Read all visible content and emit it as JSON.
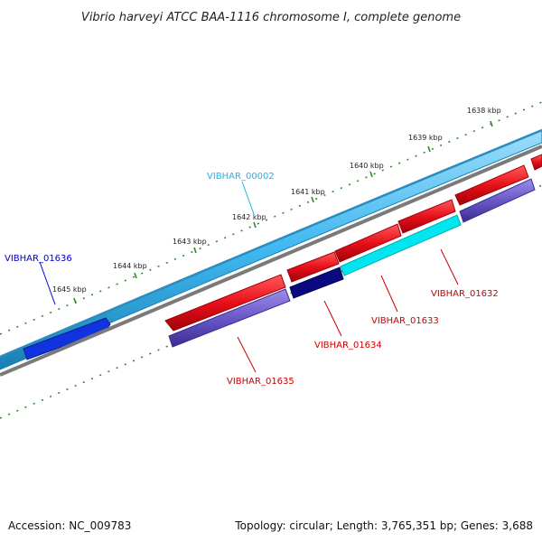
{
  "title": "Vibrio harveyi ATCC BAA-1116 chromosome I, complete genome",
  "footer": {
    "accession": "Accession: NC_009783",
    "summary": "Topology: circular; Length: 3,765,351 bp; Genes: 3,688"
  },
  "ruler": {
    "unit": "kbp",
    "labels": [
      "1638 kbp",
      "1639 kbp",
      "1640 kbp",
      "1641 kbp",
      "1642 kbp",
      "1643 kbp",
      "1644 kbp",
      "1645 kbp"
    ]
  },
  "genes": [
    {
      "id": "VIBHAR_00002",
      "color": "#1EB6E8",
      "strand": "forward"
    },
    {
      "id": "VIBHAR_01636",
      "color": "#0000CC",
      "strand": "forward"
    },
    {
      "id": "VIBHAR_01632",
      "color": "#CC0000",
      "strand": "reverse"
    },
    {
      "id": "VIBHAR_01633",
      "color": "#CC0000",
      "strand": "reverse"
    },
    {
      "id": "VIBHAR_01634",
      "color": "#CC0000",
      "strand": "reverse"
    },
    {
      "id": "VIBHAR_01635",
      "color": "#CC0000",
      "strand": "reverse"
    }
  ],
  "colors": {
    "forward_cds": "#3FB8F0",
    "forward_highlight": "#1133DD",
    "reverse_cds": "#E8101A",
    "reverse_secondary": "#6A58C8",
    "reverse_highlight_dark": "#0A0A80",
    "reverse_highlight_cyan": "#00E6F0",
    "backbone": "#7A7A7A",
    "ticks": "#2E8B2E"
  }
}
